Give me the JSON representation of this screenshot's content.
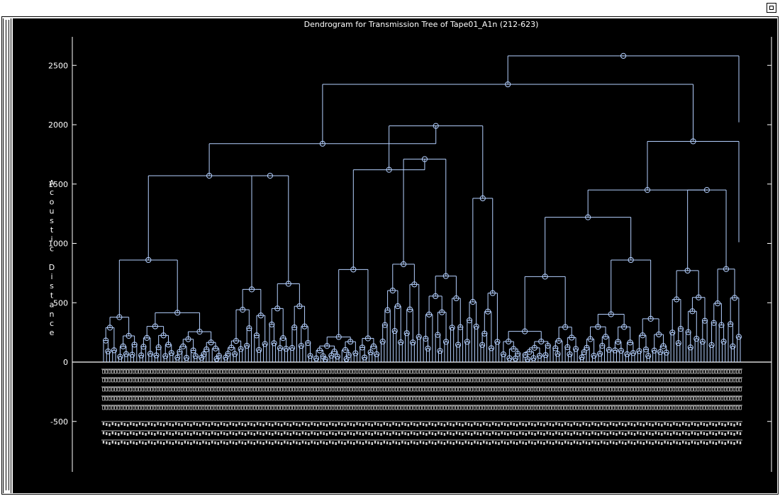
{
  "window": {
    "corner_button_icon": "restore-icon"
  },
  "chart_data": {
    "type": "dendrogram",
    "title": "Dendrogram for Transmission Tree of Tape01_A1n (212-623)",
    "ylabel": "Acoustic Distance",
    "ylim": [
      -900,
      2750
    ],
    "yticks": [
      -500,
      0,
      500,
      1000,
      1500,
      2000,
      2500
    ],
    "ytick_labels": [
      "-500",
      "0",
      "500",
      "1000",
      "1500",
      "2000",
      "2500"
    ],
    "leaf_count": 212,
    "leaf_range": [
      212,
      623
    ],
    "line_color": "#b4d0ff",
    "label_color": "#ffffff",
    "background": "#000000",
    "top_merges": [
      {
        "height": 2580
      },
      {
        "height": 2340
      },
      {
        "height": 2120
      },
      {
        "height": 2020
      },
      {
        "height": 1990
      },
      {
        "height": 1860
      },
      {
        "height": 1840
      },
      {
        "height": 1750
      },
      {
        "height": 1620
      },
      {
        "height": 1570
      },
      {
        "height": 1490
      },
      {
        "height": 1450
      },
      {
        "height": 1220
      },
      {
        "height": 1080
      },
      {
        "height": 1010
      }
    ],
    "clusters": [
      {
        "leaves": 40,
        "peak": 860,
        "base": 110
      },
      {
        "leaves": 30,
        "peak": 1570,
        "base": 100
      },
      {
        "leaves": 22,
        "peak": 780,
        "base": 240
      },
      {
        "leaves": 28,
        "peak": 1710,
        "base": 110
      },
      {
        "leaves": 12,
        "peak": 1380,
        "base": 90
      },
      {
        "leaves": 26,
        "peak": 720,
        "base": 200
      },
      {
        "leaves": 30,
        "peak": 860,
        "base": 110
      },
      {
        "leaves": 24,
        "peak": 1450,
        "base": 250
      }
    ]
  }
}
